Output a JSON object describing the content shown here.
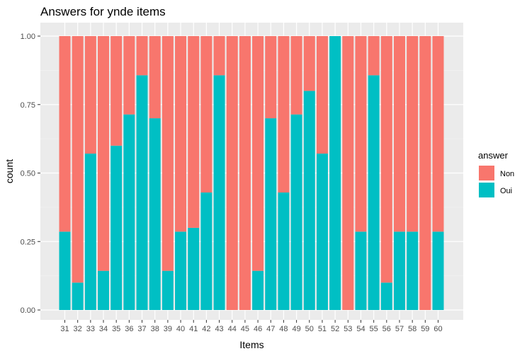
{
  "chart_data": {
    "type": "bar",
    "stacked": true,
    "position": "fill",
    "title": "Answers for ynde items",
    "xlabel": "Items",
    "ylabel": "count",
    "ylim": [
      0,
      1
    ],
    "yticks": [
      "0.00",
      "0.25",
      "0.50",
      "0.75",
      "1.00"
    ],
    "grid": true,
    "legend": {
      "title": "answer",
      "placement": "right"
    },
    "categories": [
      "31",
      "32",
      "33",
      "34",
      "35",
      "36",
      "37",
      "38",
      "39",
      "40",
      "41",
      "42",
      "43",
      "44",
      "45",
      "46",
      "47",
      "48",
      "49",
      "50",
      "51",
      "52",
      "53",
      "54",
      "55",
      "56",
      "57",
      "58",
      "59",
      "60"
    ],
    "series": [
      {
        "name": "Non",
        "color": "#F8766D",
        "values": [
          0.714,
          0.9,
          0.429,
          0.857,
          0.4,
          0.286,
          0.143,
          0.3,
          0.857,
          0.714,
          0.7,
          0.571,
          0.143,
          1.0,
          1.0,
          0.857,
          0.3,
          0.571,
          0.286,
          0.2,
          0.429,
          0.0,
          1.0,
          0.714,
          0.143,
          0.9,
          0.714,
          0.714,
          1.0,
          0.714
        ]
      },
      {
        "name": "Oui",
        "color": "#00BFC4",
        "values": [
          0.286,
          0.1,
          0.571,
          0.143,
          0.6,
          0.714,
          0.857,
          0.7,
          0.143,
          0.286,
          0.3,
          0.429,
          0.857,
          0.0,
          0.0,
          0.143,
          0.7,
          0.429,
          0.714,
          0.8,
          0.571,
          1.0,
          0.0,
          0.286,
          0.857,
          0.1,
          0.286,
          0.286,
          0.0,
          0.286
        ]
      }
    ]
  }
}
